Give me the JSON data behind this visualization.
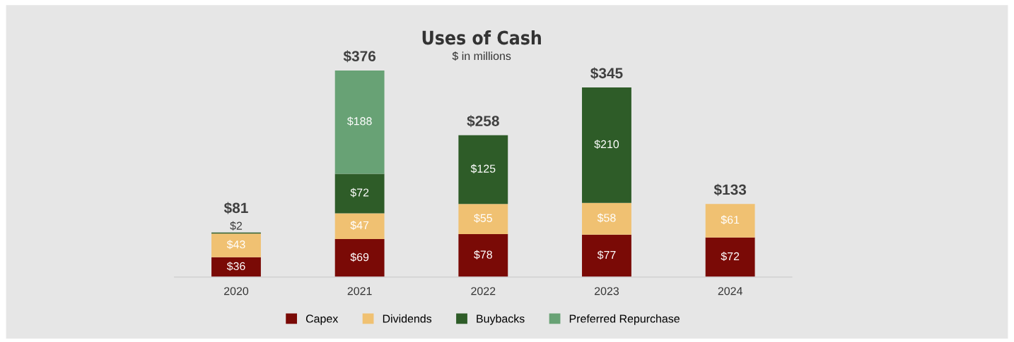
{
  "chart_data": {
    "type": "bar",
    "stacked": true,
    "title": "Uses of Cash",
    "subtitle": "$ in millions",
    "categories": [
      "2020",
      "2021",
      "2022",
      "2023",
      "2024"
    ],
    "series": [
      {
        "name": "Capex",
        "color": "#7a0a06",
        "values": [
          36,
          69,
          78,
          77,
          72
        ],
        "value_labels": [
          "$36",
          "$69",
          "$78",
          "$77",
          "$72"
        ]
      },
      {
        "name": "Dividends",
        "color": "#f0c172",
        "values": [
          43,
          47,
          55,
          58,
          61
        ],
        "value_labels": [
          "$43",
          "$47",
          "$55",
          "$58",
          "$61"
        ]
      },
      {
        "name": "Buybacks",
        "color": "#2e5c28",
        "values": [
          2,
          72,
          125,
          210,
          null
        ],
        "value_labels": [
          "$2",
          "$72",
          "$125",
          "$210",
          null
        ]
      },
      {
        "name": "Preferred Repurchase",
        "color": "#68a275",
        "values": [
          null,
          188,
          null,
          null,
          null
        ],
        "value_labels": [
          null,
          "$188",
          null,
          null,
          null
        ]
      }
    ],
    "totals": [
      "$81",
      "$376",
      "$258",
      "$345",
      "$133"
    ],
    "legend": "bottom"
  }
}
